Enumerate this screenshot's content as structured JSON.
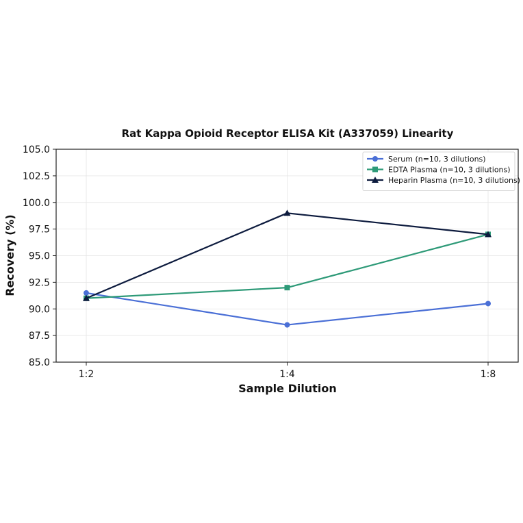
{
  "chart_data": {
    "type": "line",
    "title": "Rat Kappa Opioid Receptor ELISA Kit (A337059) Linearity",
    "xlabel": "Sample Dilution",
    "ylabel": "Recovery (%)",
    "categories": [
      "1:2",
      "1:4",
      "1:8"
    ],
    "ylim": [
      85.0,
      105.0
    ],
    "yticks": [
      "85.0",
      "87.5",
      "90.0",
      "92.5",
      "95.0",
      "97.5",
      "100.0",
      "102.5",
      "105.0"
    ],
    "grid": true,
    "legend_position": "top-right",
    "series": [
      {
        "name": "Serum (n=10, 3 dilutions)",
        "values": [
          91.5,
          88.5,
          90.5
        ],
        "color": "#4a6fd6",
        "marker": "circle"
      },
      {
        "name": "EDTA Plasma (n=10, 3 dilutions)",
        "values": [
          91.0,
          92.0,
          97.0
        ],
        "color": "#2e9a78",
        "marker": "square"
      },
      {
        "name": "Heparin Plasma (n=10, 3 dilutions)",
        "values": [
          91.0,
          99.0,
          97.0
        ],
        "color": "#0d1b3e",
        "marker": "triangle"
      }
    ]
  }
}
